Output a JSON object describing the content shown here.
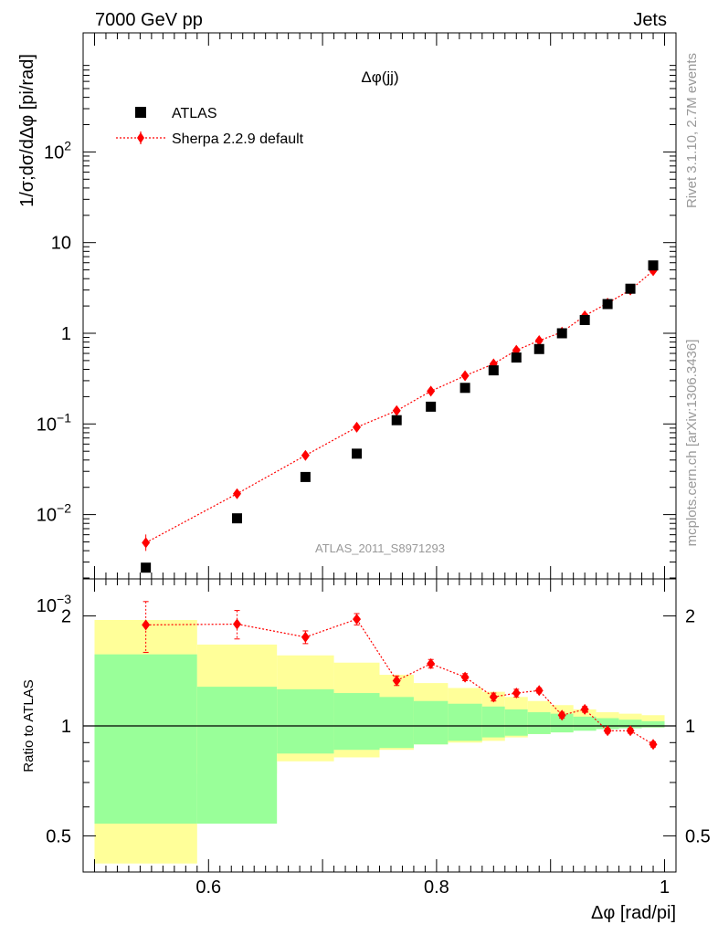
{
  "header": {
    "left": "7000 GeV pp",
    "right": "Jets"
  },
  "side_labels": {
    "upper": "Rivet 3.1.10,  2.7M events",
    "lower": "mcplots.cern.ch [arXiv:1306.3436]"
  },
  "colors": {
    "atlas": "#000000",
    "sherpa": "#ff0000",
    "band_outer": "#ffff99",
    "band_inner": "#99ff99"
  },
  "chart_data": [
    {
      "type": "scatter",
      "title": "Δφ(jj)",
      "ylabel": "1/σ;dσ/dΔφ [pi/rad]",
      "yscale": "log",
      "ylim": [
        0.0002,
        200
      ],
      "xlim": [
        0.49,
        1.01
      ],
      "watermark": "ATLAS_2011_S8971293",
      "ytick_labels": [
        {
          "v": 0.001,
          "base": "10",
          "exp": "−3"
        },
        {
          "v": 0.01,
          "base": "10",
          "exp": "−2"
        },
        {
          "v": 0.1,
          "base": "10",
          "exp": "−1"
        },
        {
          "v": 1,
          "base": "1",
          "exp": ""
        },
        {
          "v": 10,
          "base": "10",
          "exp": ""
        },
        {
          "v": 100,
          "base": "10",
          "exp": "2"
        }
      ],
      "legend": {
        "position": "top-left",
        "entries": [
          "ATLAS",
          "Sherpa 2.2.9 default"
        ]
      },
      "series": [
        {
          "name": "ATLAS",
          "marker": "square",
          "x": [
            0.545,
            0.625,
            0.685,
            0.73,
            0.765,
            0.795,
            0.825,
            0.85,
            0.87,
            0.89,
            0.91,
            0.93,
            0.95,
            0.97,
            0.99
          ],
          "y": [
            0.0026,
            0.0091,
            0.026,
            0.047,
            0.11,
            0.155,
            0.25,
            0.39,
            0.54,
            0.67,
            1.0,
            1.4,
            2.1,
            3.1,
            5.6
          ]
        },
        {
          "name": "Sherpa 2.2.9 default",
          "marker": "diamond",
          "x": [
            0.545,
            0.625,
            0.685,
            0.73,
            0.765,
            0.795,
            0.825,
            0.85,
            0.87,
            0.89,
            0.91,
            0.93,
            0.95,
            0.97,
            0.99
          ],
          "y": [
            0.0049,
            0.017,
            0.045,
            0.092,
            0.14,
            0.23,
            0.34,
            0.46,
            0.65,
            0.83,
            1.03,
            1.56,
            2.15,
            3.0,
            4.9
          ]
        }
      ]
    },
    {
      "type": "line",
      "xlabel": "Δφ [rad/pi]",
      "ylabel": "Ratio to ATLAS",
      "ylim": [
        0.42,
        2.3
      ],
      "ylim_note": "nonlinear ratio axis (ticks 0.5, 1, 2)",
      "ytick_labels": [
        {
          "v": 0.5,
          "label": "0.5"
        },
        {
          "v": 1,
          "label": "1"
        },
        {
          "v": 2,
          "label": "2"
        }
      ],
      "xtick_labels": [
        {
          "v": 0.6,
          "label": "0.6"
        },
        {
          "v": 0.8,
          "label": "0.8"
        },
        {
          "v": 1,
          "label": "1"
        }
      ],
      "bins": [
        0.5,
        0.59,
        0.66,
        0.71,
        0.75,
        0.78,
        0.81,
        0.84,
        0.86,
        0.88,
        0.9,
        0.92,
        0.94,
        0.96,
        0.98,
        1.0
      ],
      "band_outer": {
        "lo": [
          0.42,
          0.74,
          0.8,
          0.82,
          0.86,
          0.89,
          0.9,
          0.91,
          0.93,
          0.95,
          0.96,
          0.975,
          0.985,
          0.99,
          0.99
        ],
        "hi": [
          1.95,
          1.67,
          1.56,
          1.49,
          1.38,
          1.31,
          1.27,
          1.24,
          1.2,
          1.17,
          1.14,
          1.11,
          1.09,
          1.08,
          1.07
        ]
      },
      "band_inner": {
        "lo": [
          0.54,
          0.54,
          0.84,
          0.86,
          0.87,
          0.89,
          0.91,
          0.93,
          0.94,
          0.95,
          0.96,
          0.97,
          0.98,
          0.985,
          0.99
        ],
        "hi": [
          1.57,
          1.28,
          1.26,
          1.23,
          1.2,
          1.17,
          1.15,
          1.13,
          1.11,
          1.09,
          1.08,
          1.06,
          1.05,
          1.04,
          1.03
        ]
      },
      "series": [
        {
          "name": "Sherpa 2.2.9 default",
          "x": [
            0.545,
            0.625,
            0.685,
            0.73,
            0.765,
            0.795,
            0.825,
            0.85,
            0.87,
            0.89,
            0.91,
            0.93,
            0.95,
            0.97,
            0.99
          ],
          "y": [
            1.89,
            1.9,
            1.75,
            1.96,
            1.33,
            1.48,
            1.36,
            1.2,
            1.23,
            1.25,
            1.07,
            1.11,
            0.97,
            0.97,
            0.89
          ],
          "err": [
            0.3,
            0.17,
            0.07,
            0.07,
            0.04,
            0.04,
            0.03,
            0.03,
            0.03,
            0.02,
            0.02,
            0.02,
            0.015,
            0.015,
            0.015
          ]
        }
      ]
    }
  ]
}
